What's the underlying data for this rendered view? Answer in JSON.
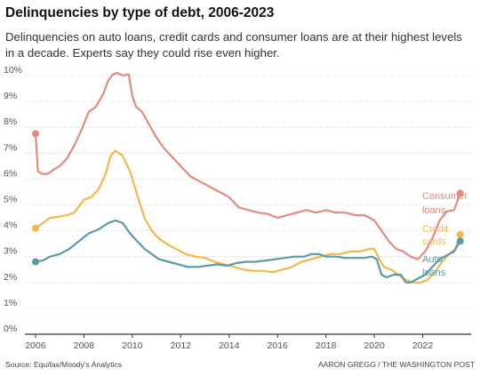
{
  "title": "Delinquencies by type of debt, 2006-2023",
  "subtitle": "Delinquencies on auto loans, credit cards and consumer loans are at their highest levels in a decade. Experts say they could rise even higher.",
  "source": "Source: Equifax/Moody's Analytics",
  "credit": "AARON GREGG / THE WASHINGTON POST",
  "colors": {
    "consumer": "#e58a7e",
    "credit": "#f2b84b",
    "auto": "#5b9aa8",
    "grid": "#d9d9d9",
    "axis": "#333333"
  },
  "chart_data": {
    "type": "line",
    "xlim": [
      2006,
      2024
    ],
    "ylim": [
      0,
      10
    ],
    "x_ticks": [
      "2006",
      "2008",
      "2010",
      "2012",
      "2014",
      "2016",
      "2018",
      "2020",
      "2022"
    ],
    "y_ticks": [
      "0%",
      "1%",
      "2%",
      "3%",
      "4%",
      "5%",
      "6%",
      "7%",
      "8%",
      "9%",
      "10%"
    ],
    "grid": true,
    "series": [
      {
        "name": "Consumer loans",
        "label_lines": [
          "Consumer",
          "loans"
        ],
        "color": "#e58a7e",
        "points": [
          [
            2006.0,
            7.75
          ],
          [
            2006.1,
            6.3
          ],
          [
            2006.25,
            6.2
          ],
          [
            2006.5,
            6.2
          ],
          [
            2006.8,
            6.4
          ],
          [
            2007.0,
            6.5
          ],
          [
            2007.3,
            6.8
          ],
          [
            2007.6,
            7.3
          ],
          [
            2007.9,
            7.9
          ],
          [
            2008.2,
            8.6
          ],
          [
            2008.5,
            8.8
          ],
          [
            2008.8,
            9.3
          ],
          [
            2009.0,
            9.8
          ],
          [
            2009.2,
            10.05
          ],
          [
            2009.4,
            10.1
          ],
          [
            2009.6,
            10.0
          ],
          [
            2009.85,
            10.05
          ],
          [
            2010.0,
            9.2
          ],
          [
            2010.15,
            8.8
          ],
          [
            2010.4,
            8.6
          ],
          [
            2010.7,
            8.1
          ],
          [
            2011.0,
            7.6
          ],
          [
            2011.3,
            7.2
          ],
          [
            2011.6,
            6.9
          ],
          [
            2012.0,
            6.5
          ],
          [
            2012.4,
            6.1
          ],
          [
            2012.8,
            5.9
          ],
          [
            2013.2,
            5.7
          ],
          [
            2013.6,
            5.5
          ],
          [
            2014.0,
            5.3
          ],
          [
            2014.4,
            4.9
          ],
          [
            2014.8,
            4.8
          ],
          [
            2015.2,
            4.7
          ],
          [
            2015.6,
            4.65
          ],
          [
            2016.0,
            4.5
          ],
          [
            2016.4,
            4.6
          ],
          [
            2016.8,
            4.7
          ],
          [
            2017.2,
            4.8
          ],
          [
            2017.6,
            4.7
          ],
          [
            2018.0,
            4.8
          ],
          [
            2018.4,
            4.7
          ],
          [
            2018.8,
            4.7
          ],
          [
            2019.2,
            4.6
          ],
          [
            2019.6,
            4.6
          ],
          [
            2019.8,
            4.5
          ],
          [
            2020.0,
            4.4
          ],
          [
            2020.3,
            4.0
          ],
          [
            2020.6,
            3.6
          ],
          [
            2020.9,
            3.3
          ],
          [
            2021.2,
            3.2
          ],
          [
            2021.5,
            3.0
          ],
          [
            2021.8,
            2.9
          ],
          [
            2022.1,
            3.2
          ],
          [
            2022.4,
            3.7
          ],
          [
            2022.7,
            4.4
          ],
          [
            2023.0,
            4.75
          ],
          [
            2023.3,
            4.8
          ],
          [
            2023.55,
            5.45
          ]
        ]
      },
      {
        "name": "Credit cards",
        "label_lines": [
          "Credit",
          "cards"
        ],
        "color": "#f2b84b",
        "points": [
          [
            2006.0,
            4.1
          ],
          [
            2006.3,
            4.3
          ],
          [
            2006.6,
            4.5
          ],
          [
            2007.0,
            4.55
          ],
          [
            2007.3,
            4.6
          ],
          [
            2007.6,
            4.7
          ],
          [
            2008.0,
            5.2
          ],
          [
            2008.3,
            5.3
          ],
          [
            2008.6,
            5.6
          ],
          [
            2008.9,
            6.2
          ],
          [
            2009.1,
            6.9
          ],
          [
            2009.3,
            7.1
          ],
          [
            2009.6,
            6.9
          ],
          [
            2009.9,
            6.3
          ],
          [
            2010.2,
            5.4
          ],
          [
            2010.5,
            4.5
          ],
          [
            2010.8,
            4.0
          ],
          [
            2011.1,
            3.7
          ],
          [
            2011.4,
            3.5
          ],
          [
            2011.8,
            3.3
          ],
          [
            2012.2,
            3.1
          ],
          [
            2012.6,
            3.0
          ],
          [
            2013.0,
            2.95
          ],
          [
            2013.4,
            2.8
          ],
          [
            2013.8,
            2.7
          ],
          [
            2014.2,
            2.6
          ],
          [
            2014.6,
            2.5
          ],
          [
            2015.0,
            2.45
          ],
          [
            2015.4,
            2.45
          ],
          [
            2015.8,
            2.4
          ],
          [
            2016.2,
            2.5
          ],
          [
            2016.6,
            2.6
          ],
          [
            2017.0,
            2.8
          ],
          [
            2017.4,
            2.9
          ],
          [
            2017.8,
            3.0
          ],
          [
            2018.2,
            3.1
          ],
          [
            2018.6,
            3.1
          ],
          [
            2019.0,
            3.2
          ],
          [
            2019.4,
            3.2
          ],
          [
            2019.8,
            3.3
          ],
          [
            2020.0,
            3.3
          ],
          [
            2020.2,
            2.9
          ],
          [
            2020.4,
            2.6
          ],
          [
            2020.7,
            2.5
          ],
          [
            2021.0,
            2.3
          ],
          [
            2021.3,
            2.1
          ],
          [
            2021.6,
            2.0
          ],
          [
            2021.9,
            2.0
          ],
          [
            2022.2,
            2.1
          ],
          [
            2022.5,
            2.4
          ],
          [
            2022.8,
            2.8
          ],
          [
            2023.1,
            3.1
          ],
          [
            2023.35,
            3.3
          ],
          [
            2023.55,
            3.85
          ]
        ]
      },
      {
        "name": "Auto loans",
        "label_lines": [
          "Auto",
          "loans"
        ],
        "color": "#5b9aa8",
        "points": [
          [
            2006.0,
            2.8
          ],
          [
            2006.3,
            2.85
          ],
          [
            2006.6,
            3.0
          ],
          [
            2007.0,
            3.1
          ],
          [
            2007.4,
            3.3
          ],
          [
            2007.8,
            3.6
          ],
          [
            2008.2,
            3.9
          ],
          [
            2008.6,
            4.05
          ],
          [
            2009.0,
            4.3
          ],
          [
            2009.3,
            4.4
          ],
          [
            2009.6,
            4.3
          ],
          [
            2009.9,
            3.9
          ],
          [
            2010.2,
            3.6
          ],
          [
            2010.5,
            3.3
          ],
          [
            2010.8,
            3.1
          ],
          [
            2011.1,
            2.9
          ],
          [
            2011.5,
            2.8
          ],
          [
            2011.9,
            2.7
          ],
          [
            2012.3,
            2.6
          ],
          [
            2012.7,
            2.6
          ],
          [
            2013.1,
            2.65
          ],
          [
            2013.5,
            2.7
          ],
          [
            2013.9,
            2.65
          ],
          [
            2014.3,
            2.75
          ],
          [
            2014.7,
            2.8
          ],
          [
            2015.1,
            2.8
          ],
          [
            2015.5,
            2.85
          ],
          [
            2015.9,
            2.9
          ],
          [
            2016.3,
            2.95
          ],
          [
            2016.7,
            3.0
          ],
          [
            2017.1,
            3.0
          ],
          [
            2017.4,
            3.1
          ],
          [
            2017.7,
            3.1
          ],
          [
            2018.0,
            3.0
          ],
          [
            2018.4,
            3.0
          ],
          [
            2018.8,
            2.95
          ],
          [
            2019.2,
            2.95
          ],
          [
            2019.6,
            2.95
          ],
          [
            2019.9,
            3.0
          ],
          [
            2020.1,
            2.9
          ],
          [
            2020.3,
            2.3
          ],
          [
            2020.5,
            2.2
          ],
          [
            2020.8,
            2.3
          ],
          [
            2021.1,
            2.3
          ],
          [
            2021.3,
            2.0
          ],
          [
            2021.5,
            2.0
          ],
          [
            2021.8,
            2.15
          ],
          [
            2022.1,
            2.3
          ],
          [
            2022.4,
            2.6
          ],
          [
            2022.7,
            2.9
          ],
          [
            2023.0,
            3.05
          ],
          [
            2023.3,
            3.2
          ],
          [
            2023.55,
            3.6
          ]
        ]
      }
    ]
  }
}
